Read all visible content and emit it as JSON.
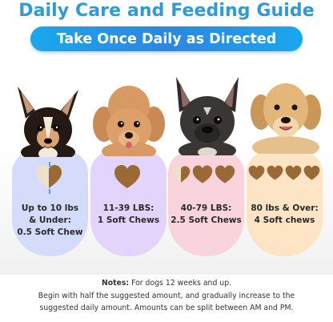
{
  "header": {
    "title": "Daily Care and Feeding Guide",
    "subtitle": "Take Once Daily as Directed"
  },
  "tiers": [
    {
      "line1": "Up to 10 lbs",
      "line2": "& Under:",
      "line3": "0.5 Soft Chew",
      "chews": 0.5,
      "color": "#d4dcfa"
    },
    {
      "line1": "11-39 LBS:",
      "line2": "1 Soft Chews",
      "chews": 1,
      "color": "#e2d4fa"
    },
    {
      "line1": "40-79 LBS:",
      "line2": "2.5 Soft Chews",
      "chews": 2.5,
      "color": "#fad4dc"
    },
    {
      "line1": "80 lbs & Over:",
      "line2": "4 Soft chews",
      "chews": 4,
      "color": "#fce4c5"
    }
  ],
  "notes": {
    "label": "Notes:",
    "line1": "For dogs 12 weeks and up.",
    "line2": "Begin with half the suggested amount, and gradually increase to the",
    "line3": "suggested daily amount. Amounts can be split between AM and PM."
  },
  "colors": {
    "title": "#2e9bd8",
    "banner": "#1aa7ee",
    "chew": "#9a6a36"
  }
}
